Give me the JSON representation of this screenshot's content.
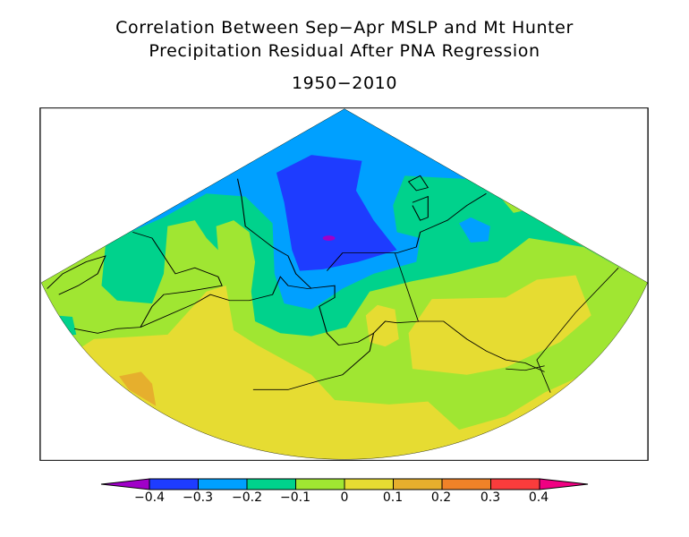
{
  "title": {
    "line1": "Correlation Between Sep−Apr MSLP and Mt Hunter",
    "line2": "Precipitation Residual After PNA Regression",
    "line3": "1950−2010"
  },
  "colorbar": {
    "labels": [
      "−0.4",
      "−0.3",
      "−0.2",
      "−0.1",
      "0",
      "0.1",
      "0.2",
      "0.3",
      "0.4"
    ],
    "levels": [
      -0.4,
      -0.3,
      -0.2,
      -0.1,
      0,
      0.1,
      0.2,
      0.3,
      0.4
    ],
    "colors": {
      "below_-0.4": "#a000c8",
      "-0.4_to_-0.3": "#1e3cff",
      "-0.3_to_-0.2": "#00a0ff",
      "-0.2_to_-0.1": "#00d28c",
      "-0.1_to_0": "#a0e632",
      "0_to_0.1": "#e6dc32",
      "0.1_to_0.2": "#e6af2d",
      "0.2_to_0.3": "#f08228",
      "0.3_to_0.4": "#fa3c3c",
      "above_0.4": "#f00082"
    }
  },
  "map": {
    "projection": "polar stereographic sector",
    "region": "Alaska, Bering Sea, Arctic Ocean, North Pacific"
  }
}
